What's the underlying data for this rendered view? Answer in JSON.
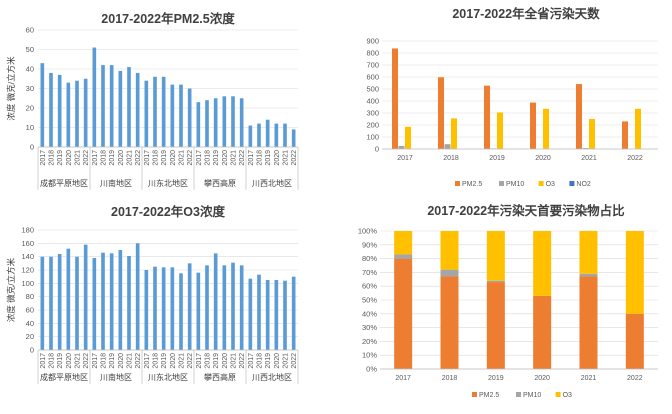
{
  "colors": {
    "pm25_bar": "#5b9bd5",
    "o3_bar": "#5b9bd5",
    "pm25": "#ed7d31",
    "pm10": "#a5a5a5",
    "o3": "#ffc000",
    "no2": "#4472c4",
    "grid": "#d9d9d9",
    "axis": "#bfbfbf"
  },
  "chart_data": [
    {
      "id": "pm25",
      "type": "bar",
      "title": "2017-2022年PM2.5浓度",
      "ylabel": "浓度 微克/立方米",
      "ylim": [
        0,
        60
      ],
      "yticks": [
        0,
        10,
        20,
        30,
        40,
        50,
        60
      ],
      "grid": true,
      "regions": [
        "成都平原地区",
        "川南地区",
        "川东北地区",
        "攀西高原",
        "川西北地区"
      ],
      "years": [
        "2017",
        "2018",
        "2019",
        "2020",
        "2021",
        "2022"
      ],
      "values": [
        [
          43,
          38,
          37,
          33,
          34,
          35
        ],
        [
          51,
          42,
          42,
          39,
          41,
          38
        ],
        [
          34,
          36,
          36,
          32,
          32,
          30
        ],
        [
          23,
          24,
          25,
          26,
          26,
          25
        ],
        [
          11,
          12,
          14,
          12,
          12,
          9
        ]
      ]
    },
    {
      "id": "days",
      "type": "bar",
      "title": "2017-2022年全省污染天数",
      "ylim": [
        0,
        900
      ],
      "yticks": [
        0,
        100,
        200,
        300,
        400,
        500,
        600,
        700,
        800,
        900
      ],
      "grid": true,
      "legend": "bottom",
      "categories": [
        "2017",
        "2018",
        "2019",
        "2020",
        "2021",
        "2022"
      ],
      "series": [
        {
          "name": "PM2.5",
          "values": [
            838,
            598,
            528,
            387,
            541,
            230
          ]
        },
        {
          "name": "PM10",
          "values": [
            25,
            40,
            5,
            0,
            8,
            0
          ]
        },
        {
          "name": "O3",
          "values": [
            185,
            255,
            305,
            335,
            250,
            335
          ]
        },
        {
          "name": "NO2",
          "values": [
            0,
            0,
            0,
            0,
            0,
            0
          ]
        }
      ]
    },
    {
      "id": "o3",
      "type": "bar",
      "title": "2017-2022年O3浓度",
      "ylabel": "浓度 微克/立方米",
      "ylim": [
        0,
        180
      ],
      "yticks": [
        0,
        20,
        40,
        60,
        80,
        100,
        120,
        140,
        160,
        180
      ],
      "grid": true,
      "regions": [
        "成都平原地区",
        "川南地区",
        "川东北地区",
        "攀西高原",
        "川西北地区"
      ],
      "years": [
        "2017",
        "2018",
        "2019",
        "2020",
        "2021",
        "2022"
      ],
      "values": [
        [
          140,
          140,
          144,
          152,
          140,
          158
        ],
        [
          138,
          146,
          145,
          150,
          141,
          160
        ],
        [
          120,
          125,
          124,
          124,
          115,
          130
        ],
        [
          116,
          127,
          145,
          127,
          131,
          127
        ],
        [
          107,
          113,
          105,
          105,
          104,
          110
        ]
      ]
    },
    {
      "id": "share",
      "type": "bar",
      "stacked": "percent",
      "title": "2017-2022年污染天首要污染物占比",
      "ylim": [
        0,
        100
      ],
      "yticks": [
        "0%",
        "10%",
        "20%",
        "30%",
        "40%",
        "50%",
        "60%",
        "70%",
        "80%",
        "90%",
        "100%"
      ],
      "grid": true,
      "legend": "bottom",
      "categories": [
        "2017",
        "2018",
        "2019",
        "2020",
        "2021",
        "2022"
      ],
      "series": [
        {
          "name": "PM2.5",
          "values": [
            80,
            67,
            63,
            53,
            67,
            40
          ]
        },
        {
          "name": "PM10",
          "values": [
            3,
            5,
            1,
            0,
            2,
            0
          ]
        },
        {
          "name": "O3",
          "values": [
            17,
            28,
            36,
            47,
            31,
            60
          ]
        }
      ]
    }
  ]
}
